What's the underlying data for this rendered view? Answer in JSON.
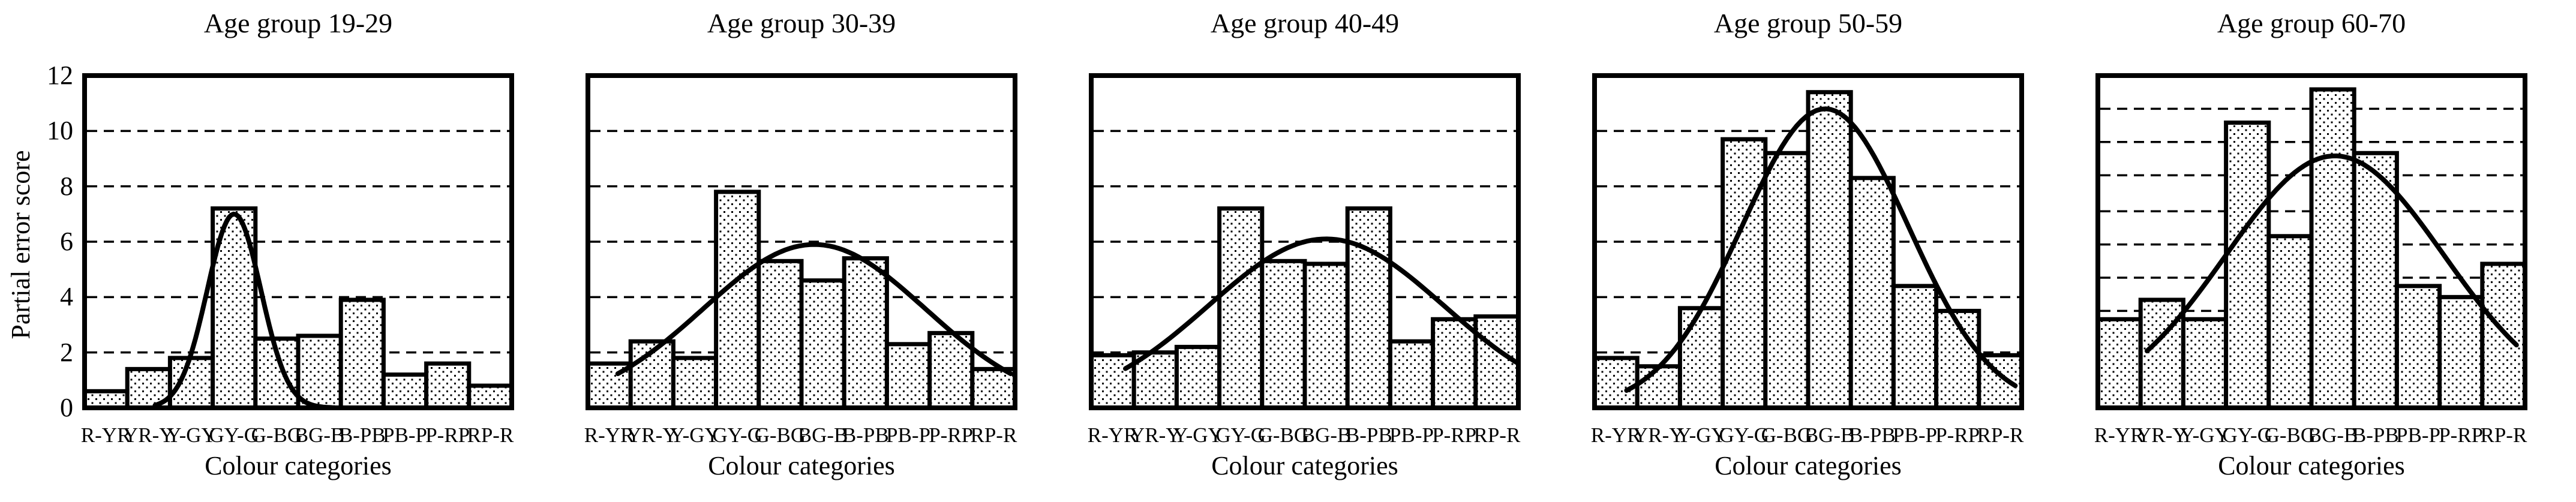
{
  "figure": {
    "background": "#ffffff",
    "ink": "#000000"
  },
  "chart_data": {
    "type": "bar",
    "description": "Five histogram panels of partial error scores per Munsell colour category with fitted normal curves, one panel per age group",
    "categories": [
      "R-YR",
      "YR-Y",
      "Y-GY",
      "GY-G",
      "G-BG",
      "BG-B",
      "B-PB",
      "PB-P",
      "P-RP",
      "RP-R"
    ],
    "xlabel": "Colour categories",
    "ylabel": "Partial error score",
    "ylim": [
      0,
      12
    ],
    "yticks": [
      0,
      2,
      4,
      6,
      8,
      10,
      12
    ],
    "grid": "horizontal dashed",
    "legend": "none",
    "panels": [
      {
        "title": "Age group 19-29",
        "values": [
          0.6,
          1.4,
          1.8,
          7.2,
          2.5,
          2.6,
          3.9,
          1.2,
          1.6,
          0.8
        ],
        "gridline_values": [
          2,
          4,
          6,
          8,
          10
        ],
        "curve": {
          "peak": 7.0,
          "center": 3.0,
          "sigma": 0.63,
          "x_start": 1.15,
          "x_end": 5.35
        }
      },
      {
        "title": "Age group 30-39",
        "values": [
          1.6,
          2.4,
          1.8,
          7.8,
          5.3,
          4.6,
          5.4,
          2.3,
          2.7,
          1.4
        ],
        "gridline_values": [
          2,
          4,
          6,
          8,
          10
        ],
        "curve": {
          "peak": 5.9,
          "center": 4.8,
          "sigma": 2.6,
          "x_start": 0.2,
          "x_end": 9.4
        }
      },
      {
        "title": "Age group 40-49",
        "values": [
          1.9,
          2.0,
          2.2,
          7.2,
          5.3,
          5.2,
          7.2,
          2.4,
          3.2,
          3.3
        ],
        "gridline_values": [
          2,
          4,
          6,
          8,
          10
        ],
        "curve": {
          "peak": 6.1,
          "center": 5.0,
          "sigma": 2.75,
          "x_start": 0.3,
          "x_end": 9.5
        }
      },
      {
        "title": "Age group 50-59",
        "values": [
          1.8,
          1.5,
          3.6,
          9.7,
          9.2,
          11.4,
          8.3,
          4.4,
          3.5,
          1.9
        ],
        "gridline_values": [
          2,
          4,
          6,
          8,
          10
        ],
        "curve": {
          "peak": 10.8,
          "center": 4.9,
          "sigma": 1.95,
          "x_start": 0.25,
          "x_end": 9.35
        }
      },
      {
        "title": "Age group 60-70",
        "values": [
          3.2,
          3.9,
          3.2,
          10.3,
          6.2,
          11.5,
          9.2,
          4.4,
          4.0,
          5.2
        ],
        "gridline_values": [
          3.5,
          4.7,
          5.9,
          7.1,
          8.4,
          9.6,
          10.8
        ],
        "curve": {
          "peak": 9.1,
          "center": 5.05,
          "sigma": 2.55,
          "x_start": 0.65,
          "x_end": 9.3
        }
      }
    ]
  }
}
